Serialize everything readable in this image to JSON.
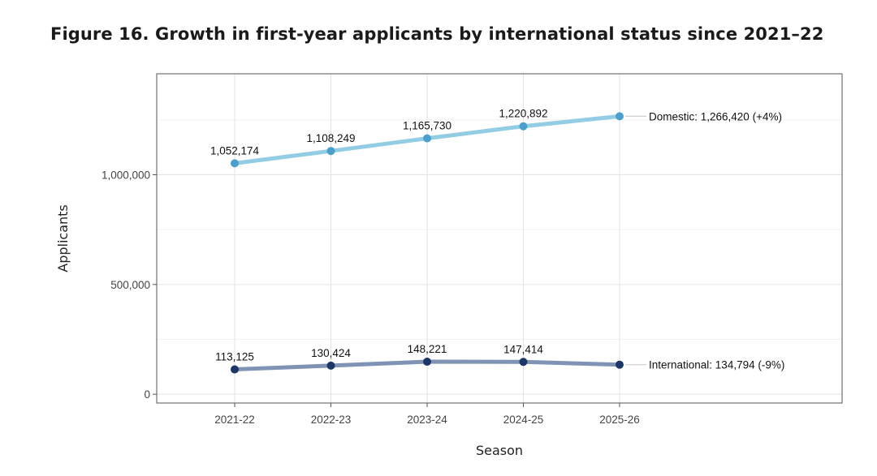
{
  "figure": {
    "title": "Figure 16. Growth in first-year applicants by international status since 2021–22"
  },
  "chart_data": {
    "type": "line",
    "title": "Figure 16. Growth in first-year applicants by international status since 2021–22",
    "xlabel": "Season",
    "ylabel": "Applicants",
    "categories": [
      "2021-22",
      "2022-23",
      "2023-24",
      "2024-25",
      "2025-26"
    ],
    "ylim": [
      -40000,
      1460000
    ],
    "yticks": [
      0,
      500000,
      1000000
    ],
    "ytick_labels": [
      "0",
      "500,000",
      "1,000,000"
    ],
    "grid": true,
    "series": [
      {
        "name": "Domestic",
        "values": [
          1052174,
          1108249,
          1165730,
          1220892,
          1266420
        ],
        "point_labels": [
          "1,052,174",
          "1,108,249",
          "1,165,730",
          "1,220,892"
        ],
        "end_label": "Domestic: 1,266,420 (+4%)",
        "line_color": "#93cde4",
        "point_color": "#4a9fcc"
      },
      {
        "name": "International",
        "values": [
          113125,
          130424,
          148221,
          147414,
          134794
        ],
        "point_labels": [
          "113,125",
          "130,424",
          "148,221",
          "147,414"
        ],
        "end_label": "International: 134,794 (-9%)",
        "line_color": "#7f94b5",
        "point_color": "#1c3668"
      }
    ]
  }
}
